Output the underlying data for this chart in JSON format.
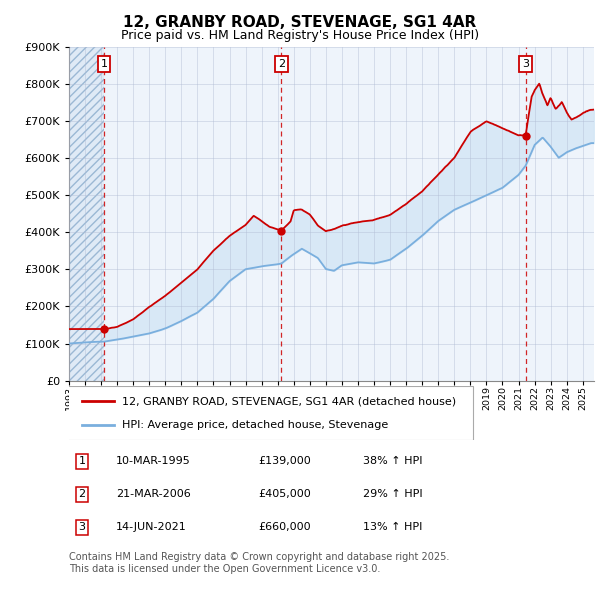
{
  "title": "12, GRANBY ROAD, STEVENAGE, SG1 4AR",
  "subtitle": "Price paid vs. HM Land Registry's House Price Index (HPI)",
  "legend_line1": "12, GRANBY ROAD, STEVENAGE, SG1 4AR (detached house)",
  "legend_line2": "HPI: Average price, detached house, Stevenage",
  "footer": "Contains HM Land Registry data © Crown copyright and database right 2025.\nThis data is licensed under the Open Government Licence v3.0.",
  "sale_events": [
    {
      "num": 1,
      "date": "10-MAR-1995",
      "price": "£139,000",
      "pct": "38% ↑ HPI",
      "year": 1995.19
    },
    {
      "num": 2,
      "date": "21-MAR-2006",
      "price": "£405,000",
      "pct": "29% ↑ HPI",
      "year": 2006.22
    },
    {
      "num": 3,
      "date": "14-JUN-2021",
      "price": "£660,000",
      "pct": "13% ↑ HPI",
      "year": 2021.45
    }
  ],
  "sale_values": [
    139000,
    405000,
    660000
  ],
  "ylim": [
    0,
    900000
  ],
  "yticks": [
    0,
    100000,
    200000,
    300000,
    400000,
    500000,
    600000,
    700000,
    800000,
    900000
  ],
  "ytick_labels": [
    "£0",
    "£100K",
    "£200K",
    "£300K",
    "£400K",
    "£500K",
    "£600K",
    "£700K",
    "£800K",
    "£900K"
  ],
  "xmin": 1993.0,
  "xmax": 2025.7,
  "color_red": "#cc0000",
  "color_blue": "#7aafde",
  "color_fill": "#d0e4f5",
  "color_hatch_face": "#dce8f5",
  "color_grid": "#b0bcd4",
  "bg_color": "#eef4fb",
  "title_fontsize": 11,
  "subtitle_fontsize": 9,
  "axis_fontsize": 8,
  "legend_fontsize": 8,
  "table_fontsize": 8,
  "footer_fontsize": 7
}
